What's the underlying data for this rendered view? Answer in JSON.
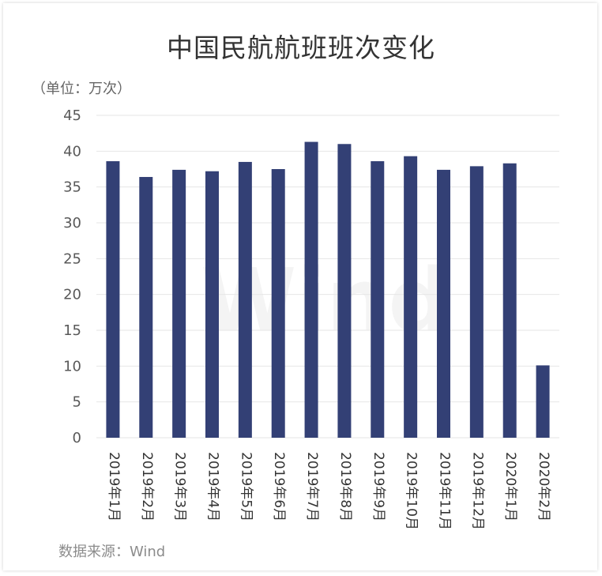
{
  "title": "中国民航航班班次变化",
  "unit_label": "（单位：万次）",
  "source_label": "数据来源：Wind",
  "watermark": "Wind",
  "chart_data": {
    "type": "bar",
    "categories": [
      "2019年1月",
      "2019年2月",
      "2019年3月",
      "2019年4月",
      "2019年5月",
      "2019年6月",
      "2019年7月",
      "2019年8月",
      "2019年9月",
      "2019年10月",
      "2019年11月",
      "2019年12月",
      "2020年1月",
      "2020年2月"
    ],
    "values": [
      38.6,
      36.4,
      37.4,
      37.2,
      38.5,
      37.5,
      41.3,
      41.0,
      38.6,
      39.3,
      37.4,
      37.9,
      38.3,
      10.1
    ],
    "ylim": [
      0,
      45
    ],
    "yticks": [
      0,
      5,
      10,
      15,
      20,
      25,
      30,
      35,
      40,
      45
    ],
    "grid": true,
    "colors": {
      "bar": "#334075",
      "grid": "#e6e6e6"
    }
  }
}
